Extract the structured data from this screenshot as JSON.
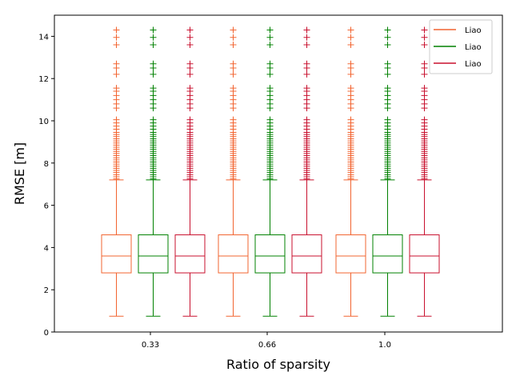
{
  "chart_data": {
    "type": "box",
    "xlabel": "Ratio of sparsity",
    "ylabel": "RMSE [m]",
    "categories": [
      "0.33",
      "0.66",
      "1.0"
    ],
    "ylim": [
      0,
      15
    ],
    "yticks": [
      0,
      2,
      4,
      6,
      8,
      10,
      12,
      14
    ],
    "grid": false,
    "legend_position": "top-right",
    "series": [
      {
        "name": "Liao",
        "color": "#f26430",
        "boxes": [
          {
            "whisker_low": 0.75,
            "q1": 2.8,
            "median": 3.6,
            "q3": 4.6,
            "whisker_high": 7.2
          },
          {
            "whisker_low": 0.75,
            "q1": 2.8,
            "median": 3.6,
            "q3": 4.6,
            "whisker_high": 7.2
          },
          {
            "whisker_low": 0.75,
            "q1": 2.8,
            "median": 3.6,
            "q3": 4.6,
            "whisker_high": 7.2
          }
        ]
      },
      {
        "name": "Liao",
        "color": "#008000",
        "boxes": [
          {
            "whisker_low": 0.75,
            "q1": 2.8,
            "median": 3.6,
            "q3": 4.6,
            "whisker_high": 7.2
          },
          {
            "whisker_low": 0.75,
            "q1": 2.8,
            "median": 3.6,
            "q3": 4.6,
            "whisker_high": 7.2
          },
          {
            "whisker_low": 0.75,
            "q1": 2.8,
            "median": 3.6,
            "q3": 4.6,
            "whisker_high": 7.2
          }
        ]
      },
      {
        "name": "Liao",
        "color": "#c8102e",
        "boxes": [
          {
            "whisker_low": 0.75,
            "q1": 2.8,
            "median": 3.6,
            "q3": 4.6,
            "whisker_high": 7.2
          },
          {
            "whisker_low": 0.75,
            "q1": 2.8,
            "median": 3.6,
            "q3": 4.6,
            "whisker_high": 7.2
          },
          {
            "whisker_low": 0.75,
            "q1": 2.8,
            "median": 3.6,
            "q3": 4.6,
            "whisker_high": 7.2
          }
        ]
      }
    ],
    "fliers": [
      7.25,
      7.35,
      7.45,
      7.55,
      7.65,
      7.75,
      7.85,
      7.95,
      8.05,
      8.15,
      8.25,
      8.35,
      8.45,
      8.55,
      8.65,
      8.75,
      8.85,
      8.95,
      9.05,
      9.15,
      9.25,
      9.35,
      9.45,
      9.6,
      9.75,
      9.9,
      10.05,
      10.6,
      10.8,
      11.0,
      11.2,
      11.4,
      11.55,
      12.2,
      12.5,
      12.7,
      13.6,
      13.95,
      14.3
    ]
  }
}
